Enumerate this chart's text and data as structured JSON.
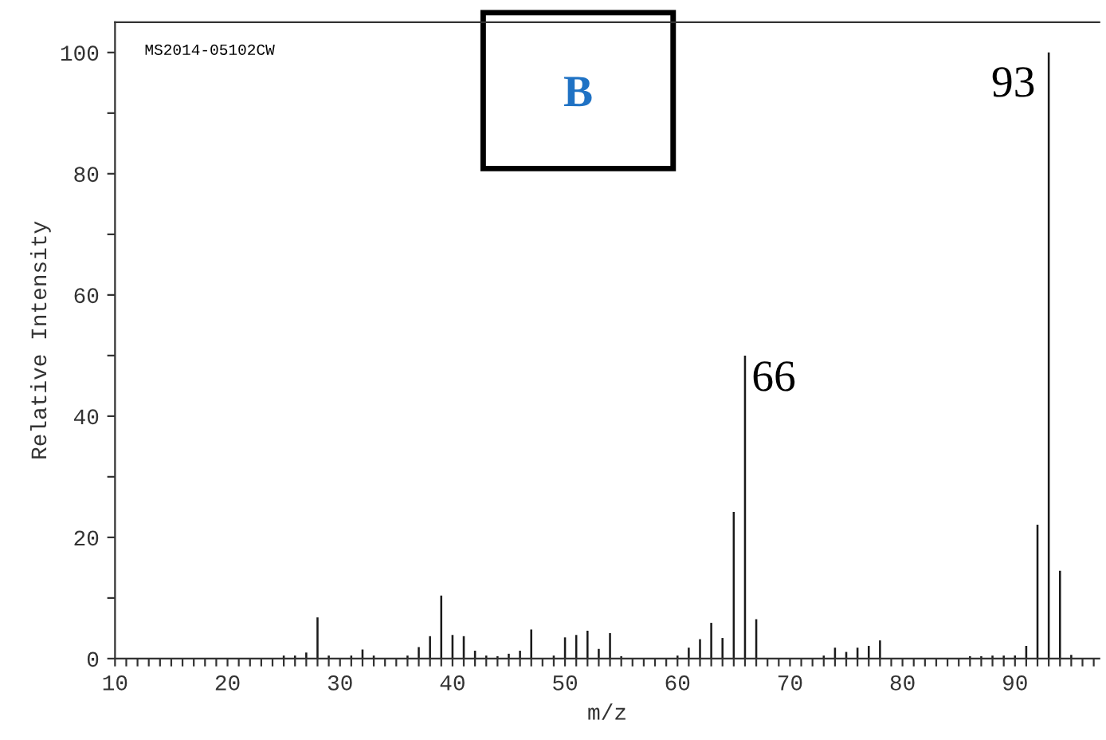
{
  "chart_data": {
    "type": "bar",
    "xlabel": "m/z",
    "ylabel": "Relative Intensity",
    "x": [
      25,
      26,
      27,
      28,
      29,
      31,
      32,
      33,
      36,
      37,
      38,
      39,
      40,
      41,
      42,
      43,
      44,
      45,
      46,
      47,
      49,
      50,
      51,
      52,
      53,
      54,
      55,
      60,
      61,
      62,
      63,
      64,
      65,
      66,
      67,
      73,
      74,
      75,
      76,
      77,
      78,
      86,
      87,
      88,
      89,
      90,
      91,
      92,
      93,
      94,
      95
    ],
    "values": [
      0.5,
      0.5,
      1,
      6.8,
      0.5,
      0.5,
      1.5,
      0.5,
      0.5,
      1.9,
      3.7,
      10.4,
      3.9,
      3.7,
      1.3,
      0.5,
      0.4,
      0.8,
      1.3,
      4.8,
      0.5,
      3.5,
      3.9,
      4.6,
      1.6,
      4.2,
      0.4,
      0.5,
      1.8,
      3.2,
      5.9,
      3.4,
      24.2,
      50,
      6.5,
      0.5,
      1.8,
      1.1,
      1.8,
      2.1,
      3,
      0.4,
      0.4,
      0.5,
      0.5,
      0.5,
      2.1,
      22.1,
      100,
      14.5,
      0.6
    ],
    "color": "#1a1a1a",
    "xlim": [
      10,
      97.5
    ],
    "ylim": [
      0,
      105
    ],
    "xticks": [
      10,
      {
        "value": 11,
        "label": null
      },
      {
        "value": 12,
        "label": null
      },
      {
        "value": 13,
        "label": null
      },
      {
        "value": 14,
        "label": null
      },
      {
        "value": 15,
        "label": null
      },
      {
        "value": 16,
        "label": null
      },
      {
        "value": 17,
        "label": null
      },
      {
        "value": 18,
        "label": null
      },
      {
        "value": 19,
        "label": null
      },
      20,
      {
        "value": 21,
        "label": null
      },
      {
        "value": 22,
        "label": null
      },
      {
        "value": 23,
        "label": null
      },
      {
        "value": 24,
        "label": null
      },
      {
        "value": 25,
        "label": null
      },
      {
        "value": 26,
        "label": null
      },
      {
        "value": 27,
        "label": null
      },
      {
        "value": 28,
        "label": null
      },
      {
        "value": 29,
        "label": null
      },
      30,
      {
        "value": 31,
        "label": null
      },
      {
        "value": 32,
        "label": null
      },
      {
        "value": 33,
        "label": null
      },
      {
        "value": 34,
        "label": null
      },
      {
        "value": 35,
        "label": null
      },
      {
        "value": 36,
        "label": null
      },
      {
        "value": 37,
        "label": null
      },
      {
        "value": 38,
        "label": null
      },
      {
        "value": 39,
        "label": null
      },
      40,
      {
        "value": 41,
        "label": null
      },
      {
        "value": 42,
        "label": null
      },
      {
        "value": 43,
        "label": null
      },
      {
        "value": 44,
        "label": null
      },
      {
        "value": 45,
        "label": null
      },
      {
        "value": 46,
        "label": null
      },
      {
        "value": 47,
        "label": null
      },
      {
        "value": 48,
        "label": null
      },
      {
        "value": 49,
        "label": null
      },
      50,
      {
        "value": 51,
        "label": null
      },
      {
        "value": 52,
        "label": null
      },
      {
        "value": 53,
        "label": null
      },
      {
        "value": 54,
        "label": null
      },
      {
        "value": 55,
        "label": null
      },
      {
        "value": 56,
        "label": null
      },
      {
        "value": 57,
        "label": null
      },
      {
        "value": 58,
        "label": null
      },
      {
        "value": 59,
        "label": null
      },
      60,
      {
        "value": 61,
        "label": null
      },
      {
        "value": 62,
        "label": null
      },
      {
        "value": 63,
        "label": null
      },
      {
        "value": 64,
        "label": null
      },
      {
        "value": 65,
        "label": null
      },
      {
        "value": 66,
        "label": null
      },
      {
        "value": 67,
        "label": null
      },
      {
        "value": 68,
        "label": null
      },
      {
        "value": 69,
        "label": null
      },
      70,
      {
        "value": 71,
        "label": null
      },
      {
        "value": 72,
        "label": null
      },
      {
        "value": 73,
        "label": null
      },
      {
        "value": 74,
        "label": null
      },
      {
        "value": 75,
        "label": null
      },
      {
        "value": 76,
        "label": null
      },
      {
        "value": 77,
        "label": null
      },
      {
        "value": 78,
        "label": null
      },
      {
        "value": 79,
        "label": null
      },
      80,
      {
        "value": 81,
        "label": null
      },
      {
        "value": 82,
        "label": null
      },
      {
        "value": 83,
        "label": null
      },
      {
        "value": 84,
        "label": null
      },
      {
        "value": 85,
        "label": null
      },
      {
        "value": 86,
        "label": null
      },
      {
        "value": 87,
        "label": null
      },
      {
        "value": 88,
        "label": null
      },
      {
        "value": 89,
        "label": null
      },
      90,
      {
        "value": 91,
        "label": null
      },
      {
        "value": 92,
        "label": null
      },
      {
        "value": 93,
        "label": null
      },
      {
        "value": 94,
        "label": null
      },
      {
        "value": 95,
        "label": null
      },
      {
        "value": 96,
        "label": null
      },
      {
        "value": 97,
        "label": null
      }
    ],
    "yticks": [
      0,
      {
        "value": 10,
        "label": null
      },
      20,
      {
        "value": 30,
        "label": null
      },
      40,
      {
        "value": 50,
        "label": null
      },
      60,
      {
        "value": 70,
        "label": null
      },
      80,
      {
        "value": 90,
        "label": null
      },
      100
    ],
    "grid": false,
    "annotations": [
      {
        "text": "93",
        "x": 93,
        "y": 100
      },
      {
        "text": "66",
        "x": 66,
        "y": 50
      },
      "MS2014-05102CW",
      "B"
    ]
  }
}
